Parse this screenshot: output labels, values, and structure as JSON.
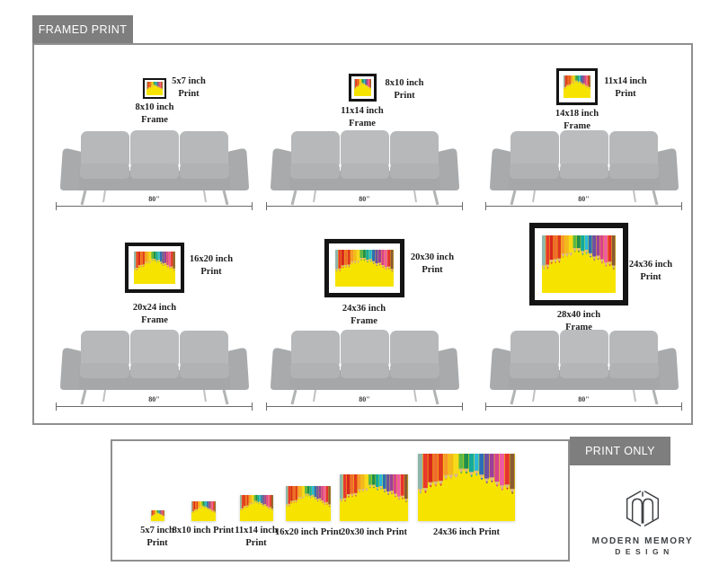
{
  "framed_section": {
    "tab_label": "FRAMED PRINT",
    "sofa_width_label": "80\"",
    "items": [
      {
        "print_label": "5x7 inch Print",
        "frame_label": "8x10 inch Frame"
      },
      {
        "print_label": "8x10 inch Print",
        "frame_label": "11x14 inch Frame"
      },
      {
        "print_label": "11x14 inch Print",
        "frame_label": "14x18 inch Frame"
      },
      {
        "print_label": "16x20 inch Print",
        "frame_label": "20x24 inch Frame"
      },
      {
        "print_label": "20x30 inch Print",
        "frame_label": "24x36 inch Frame"
      },
      {
        "print_label": "24x36 inch Print",
        "frame_label": "28x40 inch Frame"
      }
    ]
  },
  "print_only_section": {
    "tab_label": "PRINT ONLY",
    "sizes": [
      {
        "label": "5x7 inch Print"
      },
      {
        "label": "8x10 inch Print"
      },
      {
        "label": "11x14 inch Print"
      },
      {
        "label": "16x20 inch Print"
      },
      {
        "label": "20x30 inch Print"
      },
      {
        "label": "24x36 inch Print"
      }
    ]
  },
  "brand": {
    "name_line1": "MODERN MEMORY",
    "name_line2": "DESIGN"
  },
  "artwork": {
    "description": "colored pencils forming a peak on yellow background",
    "background": "#f6e400",
    "wood_tip": "#dcb687",
    "pencil_colors": [
      "#8fb6ad",
      "#e8392e",
      "#d7271d",
      "#ef6c2d",
      "#e0391f",
      "#f6992b",
      "#f2b81e",
      "#f8d91c",
      "#5cb848",
      "#1e8f4e",
      "#13a99c",
      "#29b8dc",
      "#2a6db8",
      "#6e4fa4",
      "#9c3f9a",
      "#d8418f",
      "#ef5ba1",
      "#e63030",
      "#8a5a35"
    ]
  },
  "colors": {
    "tab_background": "#7e7e7e",
    "tab_text": "#ffffff",
    "panel_border": "#8f8f8f",
    "frame_border": "#141414",
    "label_text": "#1f1f1f",
    "dimension_line": "#6b6b6b",
    "sofa_gray": "#b3b5b7",
    "logo_color": "#3e4144"
  }
}
